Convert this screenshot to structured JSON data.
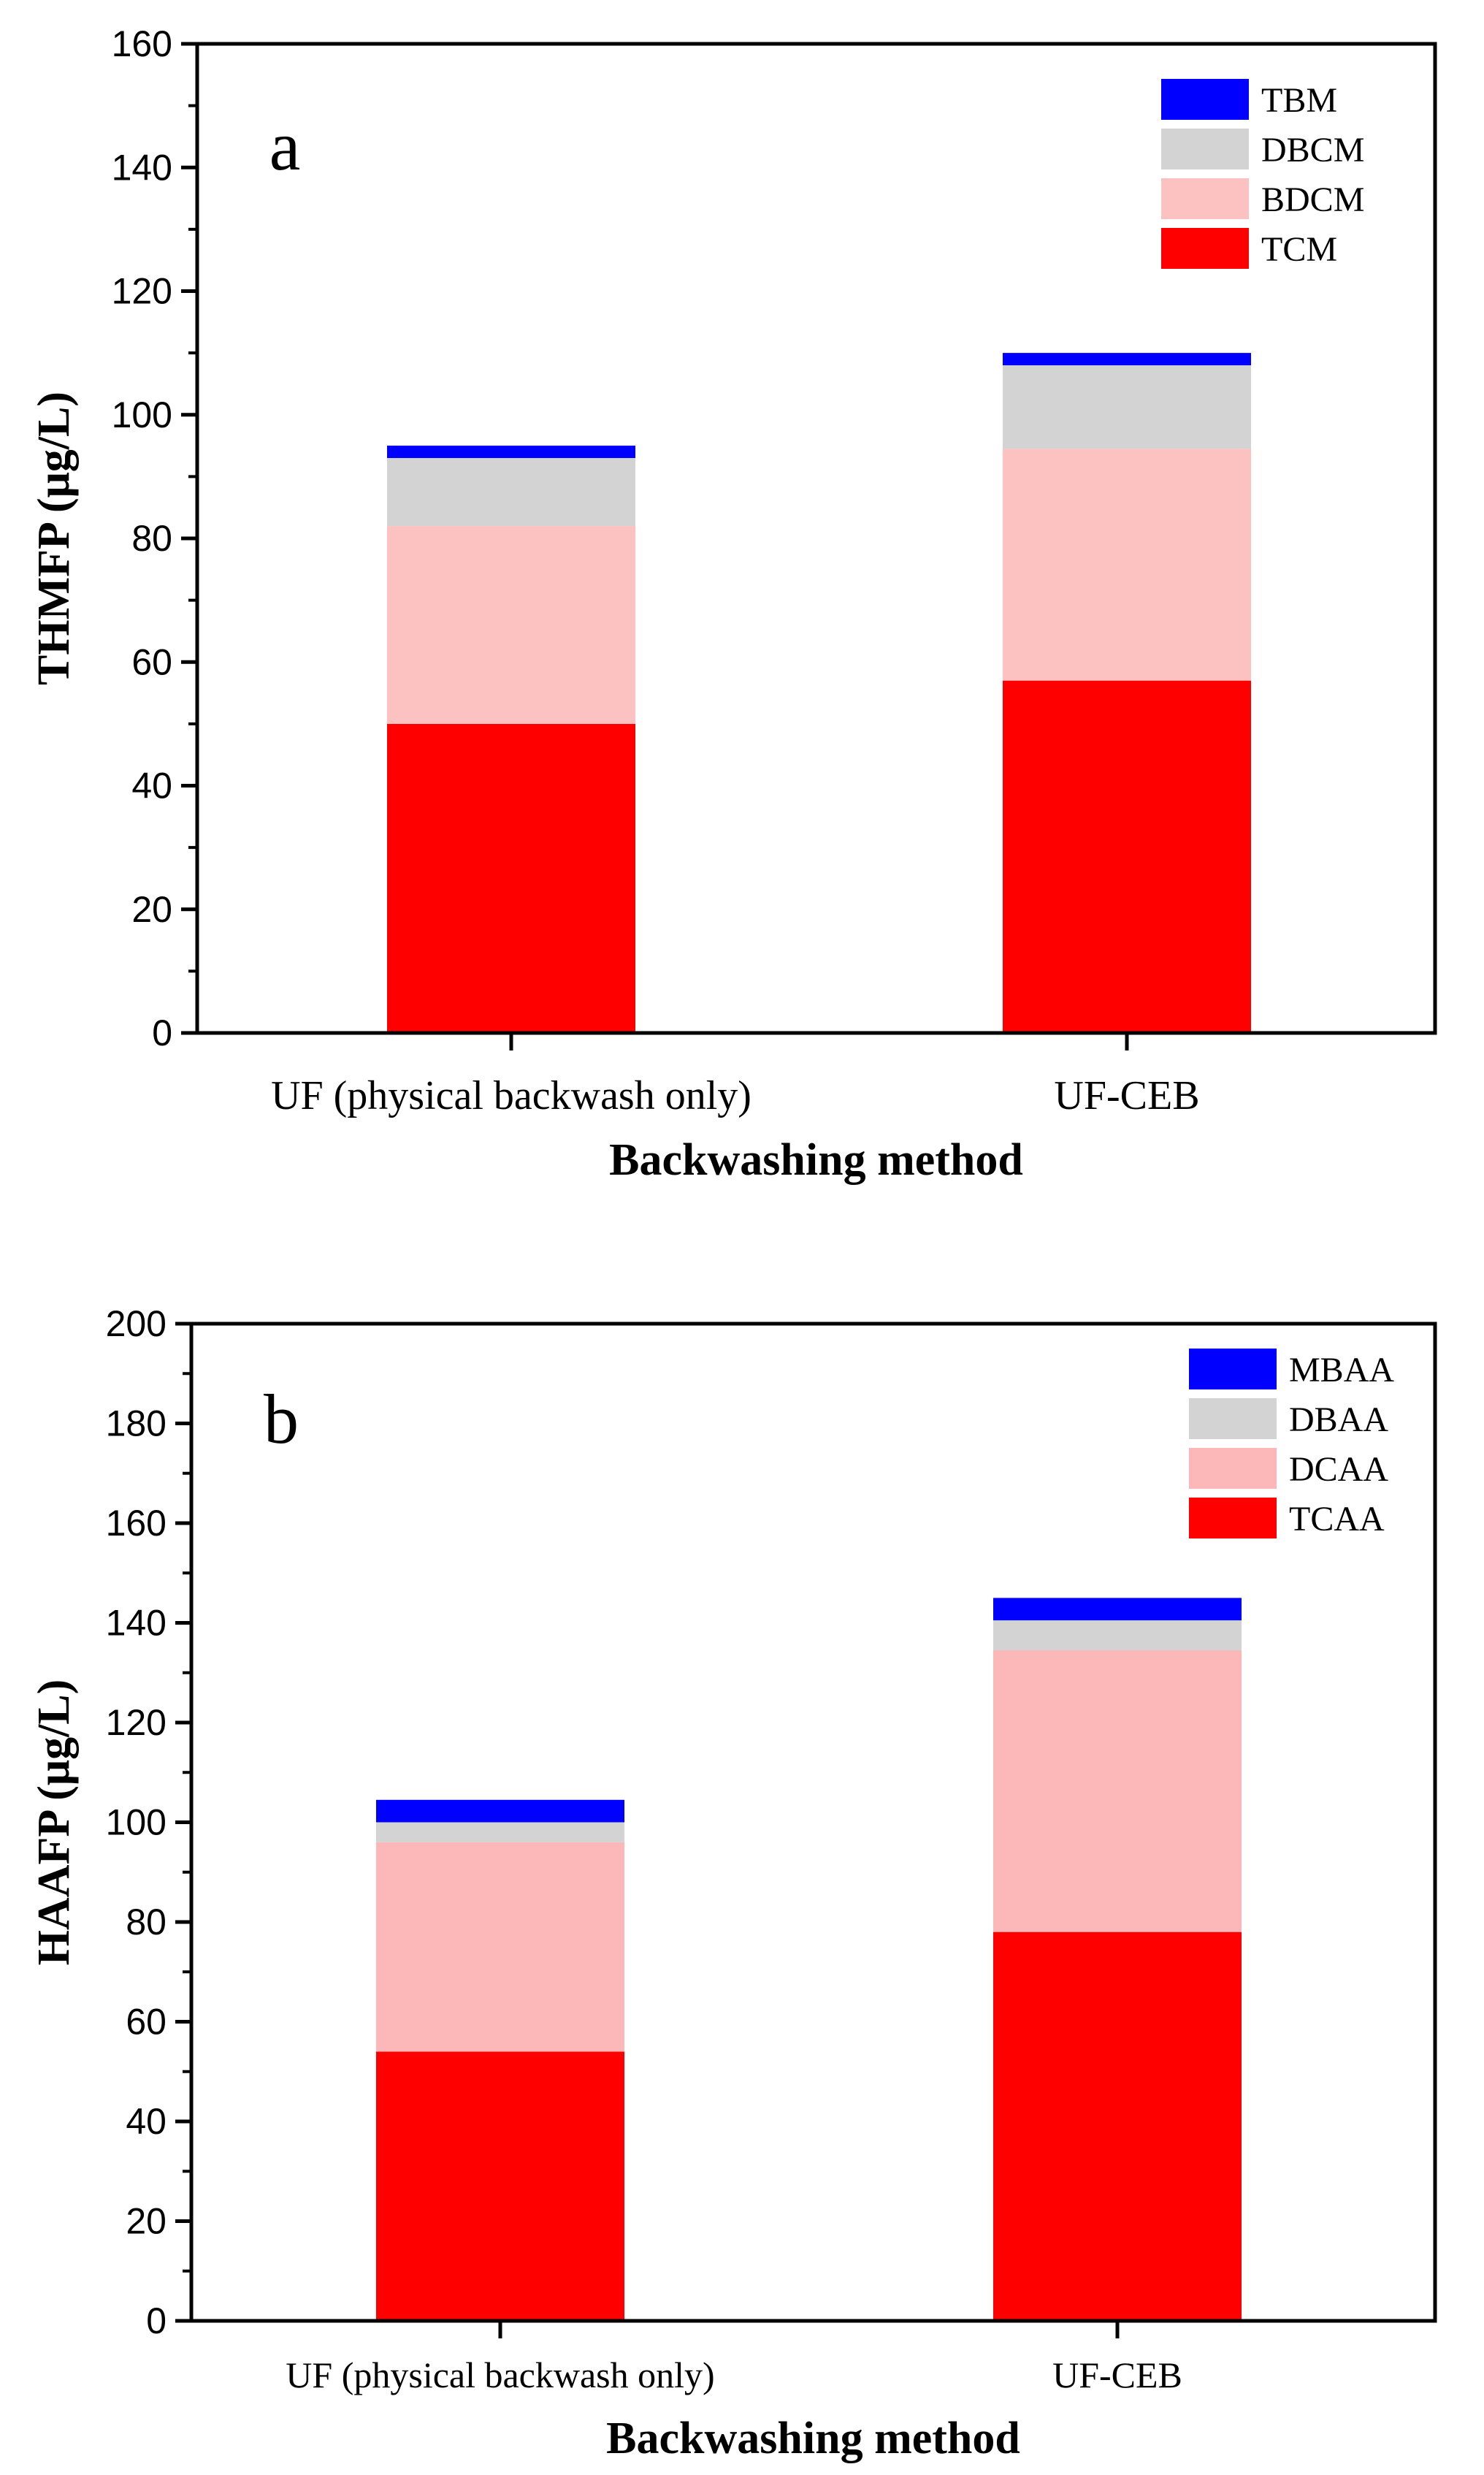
{
  "chart_data": [
    {
      "type": "bar",
      "stacked": true,
      "panel_label": "a",
      "categories": [
        "UF (physical backwash only)",
        "UF-CEB"
      ],
      "series": [
        {
          "name": "TCM",
          "color": "#ff0000",
          "values": [
            50,
            57
          ]
        },
        {
          "name": "BDCM",
          "color": "#fcc2c2",
          "values": [
            32,
            37.5
          ]
        },
        {
          "name": "DBCM",
          "color": "#d3d3d3",
          "values": [
            11,
            13.5
          ]
        },
        {
          "name": "TBM",
          "color": "#0000ff",
          "values": [
            2,
            2
          ]
        }
      ],
      "legend_order": [
        "TBM",
        "DBCM",
        "BDCM",
        "TCM"
      ],
      "legend_position": "top-right",
      "xlabel": "Backwashing method",
      "ylabel": "THMFP (μg/L)",
      "ylim": [
        0,
        160
      ],
      "yticks": [
        0,
        20,
        40,
        60,
        80,
        100,
        120,
        140,
        160
      ],
      "grid": false
    },
    {
      "type": "bar",
      "stacked": true,
      "panel_label": "b",
      "categories": [
        "UF (physical backwash only)",
        "UF-CEB"
      ],
      "series": [
        {
          "name": "TCAA",
          "color": "#ff0000",
          "values": [
            54,
            78
          ]
        },
        {
          "name": "DCAA",
          "color": "#fcb8b8",
          "values": [
            42,
            56.5
          ]
        },
        {
          "name": "DBAA",
          "color": "#d3d3d3",
          "values": [
            4,
            6
          ]
        },
        {
          "name": "MBAA",
          "color": "#0000ff",
          "values": [
            4.5,
            4.5
          ]
        }
      ],
      "legend_order": [
        "MBAA",
        "DBAA",
        "DCAA",
        "TCAA"
      ],
      "legend_position": "top-right",
      "xlabel": "Backwashing method",
      "ylabel": "HAAFP (μg/L)",
      "ylim": [
        0,
        200
      ],
      "yticks": [
        0,
        20,
        40,
        60,
        80,
        100,
        120,
        140,
        160,
        180,
        200
      ],
      "grid": false
    }
  ]
}
